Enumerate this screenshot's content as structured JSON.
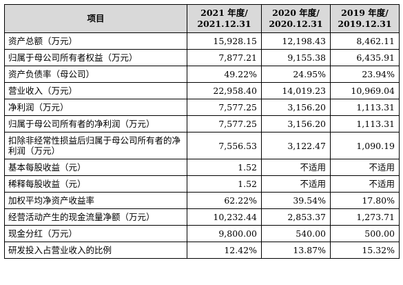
{
  "table": {
    "header": {
      "item": "项目",
      "periods": [
        {
          "year": "2021 年度/",
          "date": "2021.12.31"
        },
        {
          "year": "2020 年度/",
          "date": "2020.12.31"
        },
        {
          "year": "2019 年度/",
          "date": "2019.12.31"
        }
      ]
    },
    "rows": [
      {
        "label": "资产总额（万元）",
        "values": [
          "15,928.15",
          "12,198.43",
          "8,462.11"
        ]
      },
      {
        "label": "归属于母公司所有者权益（万元）",
        "values": [
          "7,877.21",
          "9,155.38",
          "6,435.91"
        ]
      },
      {
        "label": "资产负债率（母公司）",
        "values": [
          "49.22%",
          "24.95%",
          "23.94%"
        ]
      },
      {
        "label": "营业收入（万元）",
        "values": [
          "22,958.40",
          "14,019.23",
          "10,969.04"
        ]
      },
      {
        "label": "净利润（万元）",
        "values": [
          "7,577.25",
          "3,156.20",
          "1,113.31"
        ]
      },
      {
        "label": "归属于母公司所有者的净利润（万元）",
        "values": [
          "7,577.25",
          "3,156.20",
          "1,113.31"
        ]
      },
      {
        "label": "扣除非经常性损益后归属于母公司所有者的净利润（万元）",
        "values": [
          "7,556.53",
          "3,122.47",
          "1,090.19"
        ]
      },
      {
        "label": "基本每股收益（元）",
        "values": [
          "1.52",
          "不适用",
          "不适用"
        ]
      },
      {
        "label": "稀释每股收益（元）",
        "values": [
          "1.52",
          "不适用",
          "不适用"
        ]
      },
      {
        "label": "加权平均净资产收益率",
        "values": [
          "62.22%",
          "39.54%",
          "17.80%"
        ]
      },
      {
        "label": "经营活动产生的现金流量净额（万元）",
        "values": [
          "10,232.44",
          "2,853.37",
          "1,273.71"
        ]
      },
      {
        "label": "现金分红（万元）",
        "values": [
          "9,800.00",
          "540.00",
          "500.00"
        ]
      },
      {
        "label": "研发投入占营业收入的比例",
        "values": [
          "12.42%",
          "13.87%",
          "15.32%"
        ]
      }
    ]
  }
}
